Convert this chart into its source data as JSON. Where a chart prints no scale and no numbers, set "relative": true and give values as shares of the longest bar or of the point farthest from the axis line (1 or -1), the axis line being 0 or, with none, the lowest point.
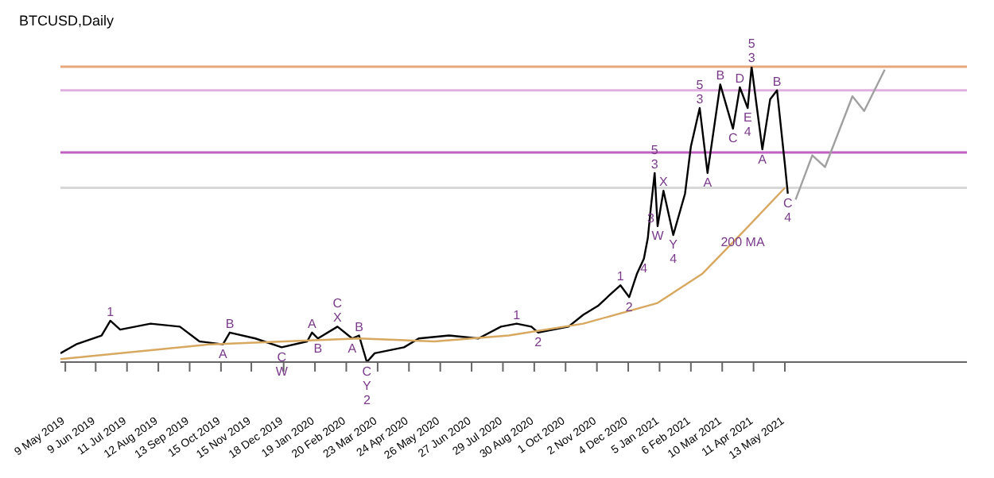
{
  "chart_data": {
    "type": "line",
    "title": "BTCUSD,Daily",
    "relative": true,
    "xlim": [
      "2019-05-04",
      "2021-11-15"
    ],
    "xticks": [
      {
        "value": "2019-05-09",
        "label": "9 May 2019"
      },
      {
        "value": "2019-06-09",
        "label": "9 Jun 2019"
      },
      {
        "value": "2019-07-11",
        "label": "11 Jul 2019"
      },
      {
        "value": "2019-08-12",
        "label": "12 Aug 2019"
      },
      {
        "value": "2019-09-13",
        "label": "13 Sep 2019"
      },
      {
        "value": "2019-10-15",
        "label": "15 Oct 2019"
      },
      {
        "value": "2019-11-15",
        "label": "15 Nov 2019"
      },
      {
        "value": "2019-12-18",
        "label": "18 Dec 2019"
      },
      {
        "value": "2020-01-19",
        "label": "19 Jan 2020"
      },
      {
        "value": "2020-02-20",
        "label": "20 Feb 2020"
      },
      {
        "value": "2020-03-23",
        "label": "23 Mar 2020"
      },
      {
        "value": "2020-04-24",
        "label": "24 Apr 2020"
      },
      {
        "value": "2020-05-26",
        "label": "26 May 2020"
      },
      {
        "value": "2020-06-27",
        "label": "27 Jun 2020"
      },
      {
        "value": "2020-07-29",
        "label": "29 Jul 2020"
      },
      {
        "value": "2020-08-30",
        "label": "30 Aug 2020"
      },
      {
        "value": "2020-10-01",
        "label": "1 Oct 2020"
      },
      {
        "value": "2020-11-02",
        "label": "2 Nov 2020"
      },
      {
        "value": "2020-12-04",
        "label": "4 Dec 2020"
      },
      {
        "value": "2021-01-05",
        "label": "5 Jan 2021"
      },
      {
        "value": "2021-02-06",
        "label": "6 Feb 2021"
      },
      {
        "value": "2021-03-10",
        "label": "10 Mar 2021"
      },
      {
        "value": "2021-04-11",
        "label": "11 Apr 2021"
      },
      {
        "value": "2021-05-13",
        "label": "13 May 2021"
      }
    ],
    "series": [
      {
        "color": "#000000",
        "x": [
          "2019-05-04",
          "2019-05-20",
          "2019-06-15",
          "2019-06-24",
          "2019-07-04",
          "2019-08-04",
          "2019-09-03",
          "2019-09-23",
          "2019-10-17",
          "2019-10-24",
          "2019-11-19",
          "2019-12-16",
          "2020-01-11",
          "2020-01-16",
          "2020-01-22",
          "2020-02-11",
          "2020-02-26",
          "2020-03-04",
          "2020-03-12",
          "2020-03-20",
          "2020-04-19",
          "2020-05-04",
          "2020-06-04",
          "2020-07-04",
          "2020-07-27",
          "2020-08-12",
          "2020-08-27",
          "2020-09-03",
          "2020-10-04",
          "2020-10-19",
          "2020-11-03",
          "2020-11-16",
          "2020-11-26",
          "2020-12-05",
          "2020-12-13",
          "2020-12-20",
          "2020-12-24",
          "2020-12-27",
          "2020-12-31",
          "2021-01-03",
          "2021-01-09",
          "2021-01-19",
          "2021-01-31",
          "2021-02-06",
          "2021-02-15",
          "2021-02-23",
          "2021-03-08",
          "2021-03-21",
          "2021-03-28",
          "2021-04-05",
          "2021-04-09",
          "2021-04-20",
          "2021-04-28",
          "2021-05-05",
          "2021-05-13",
          "2021-05-16"
        ],
        "values": [
          0.03,
          0.06,
          0.09,
          0.14,
          0.11,
          0.13,
          0.12,
          0.07,
          0.06,
          0.1,
          0.08,
          0.05,
          0.07,
          0.1,
          0.08,
          0.12,
          0.08,
          0.09,
          0,
          0.03,
          0.05,
          0.08,
          0.09,
          0.08,
          0.12,
          0.13,
          0.12,
          0.1,
          0.12,
          0.16,
          0.19,
          0.23,
          0.26,
          0.22,
          0.3,
          0.35,
          0.42,
          0.52,
          0.64,
          0.46,
          0.58,
          0.43,
          0.57,
          0.73,
          0.86,
          0.64,
          0.94,
          0.79,
          0.93,
          0.86,
          1,
          0.72,
          0.89,
          0.92,
          0.67,
          0.57
        ]
      },
      {
        "color": "#d8a860",
        "x": [
          "2019-05-04",
          "2019-10-04",
          "2019-12-19",
          "2020-03-04",
          "2020-05-20",
          "2020-08-04",
          "2020-10-19",
          "2021-01-03",
          "2021-02-18",
          "2021-03-31",
          "2021-05-13"
        ],
        "values": [
          0.01,
          0.06,
          0.07,
          0.08,
          0.07,
          0.09,
          0.13,
          0.2,
          0.3,
          0.44,
          0.59
        ]
      },
      {
        "color": "#a0a0a0",
        "x": [
          "2021-05-24",
          "2021-06-10",
          "2021-06-23",
          "2021-07-21",
          "2021-08-02",
          "2021-08-23"
        ],
        "values": [
          0.55,
          0.7,
          0.66,
          0.9,
          0.85,
          0.99
        ]
      }
    ],
    "ref_lines": [
      {
        "axis": "y",
        "value": 1,
        "color": "#e8a87c"
      },
      {
        "axis": "y",
        "value": 0.92,
        "color": "#e0b0e0"
      },
      {
        "axis": "y",
        "value": 0.71,
        "color": "#c060c0"
      },
      {
        "axis": "y",
        "value": 0.59,
        "color": "#d8d8d8"
      }
    ],
    "annotations": [
      {
        "text": "1",
        "x": "2019-06-24",
        "y": 0.14
      },
      {
        "text": "A",
        "x": "2019-10-17",
        "y": 0.06
      },
      {
        "text": "B",
        "x": "2019-10-24",
        "y": 0.1
      },
      {
        "text": "C",
        "x": "2019-12-16",
        "y": 0.05
      },
      {
        "text": "W",
        "x": "2019-12-16",
        "y": 0.05
      },
      {
        "text": "A",
        "x": "2020-01-16",
        "y": 0.1
      },
      {
        "text": "B",
        "x": "2020-01-22",
        "y": 0.08
      },
      {
        "text": "X",
        "x": "2020-02-11",
        "y": 0.12
      },
      {
        "text": "C",
        "x": "2020-02-11",
        "y": 0.12
      },
      {
        "text": "A",
        "x": "2020-02-26",
        "y": 0.08
      },
      {
        "text": "B",
        "x": "2020-03-04",
        "y": 0.09
      },
      {
        "text": "C",
        "x": "2020-03-12",
        "y": 0
      },
      {
        "text": "Y",
        "x": "2020-03-12",
        "y": 0
      },
      {
        "text": "2",
        "x": "2020-03-12",
        "y": 0
      },
      {
        "text": "1",
        "x": "2020-08-12",
        "y": 0.13
      },
      {
        "text": "2",
        "x": "2020-09-03",
        "y": 0.1
      },
      {
        "text": "1",
        "x": "2020-11-26",
        "y": 0.26
      },
      {
        "text": "2",
        "x": "2020-12-05",
        "y": 0.22
      },
      {
        "text": "4",
        "x": "2020-12-20",
        "y": 0.35
      },
      {
        "text": "3",
        "x": "2020-12-27",
        "y": 0.52
      },
      {
        "text": "3",
        "x": "2020-12-31",
        "y": 0.64
      },
      {
        "text": "5",
        "x": "2020-12-31",
        "y": 0.64
      },
      {
        "text": "W",
        "x": "2021-01-03",
        "y": 0.46
      },
      {
        "text": "X",
        "x": "2021-01-09",
        "y": 0.58
      },
      {
        "text": "Y",
        "x": "2021-01-19",
        "y": 0.43
      },
      {
        "text": "4",
        "x": "2021-01-19",
        "y": 0.43
      },
      {
        "text": "3",
        "x": "2021-02-15",
        "y": 0.86
      },
      {
        "text": "5",
        "x": "2021-02-15",
        "y": 0.86
      },
      {
        "text": "A",
        "x": "2021-02-23",
        "y": 0.64
      },
      {
        "text": "B",
        "x": "2021-03-08",
        "y": 0.94
      },
      {
        "text": "C",
        "x": "2021-03-21",
        "y": 0.79
      },
      {
        "text": "D",
        "x": "2021-03-28",
        "y": 0.93
      },
      {
        "text": "E",
        "x": "2021-04-05",
        "y": 0.86
      },
      {
        "text": "4",
        "x": "2021-04-05",
        "y": 0.86
      },
      {
        "text": "3",
        "x": "2021-04-09",
        "y": 1
      },
      {
        "text": "5",
        "x": "2021-04-09",
        "y": 1
      },
      {
        "text": "A",
        "x": "2021-04-20",
        "y": 0.72
      },
      {
        "text": "B",
        "x": "2021-05-05",
        "y": 0.92
      },
      {
        "text": "C",
        "x": "2021-05-16",
        "y": 0.57
      },
      {
        "text": "4",
        "x": "2021-05-16",
        "y": 0.57
      },
      {
        "text": "200 MA",
        "x": "2021-03-31",
        "y": 0.44
      }
    ]
  }
}
